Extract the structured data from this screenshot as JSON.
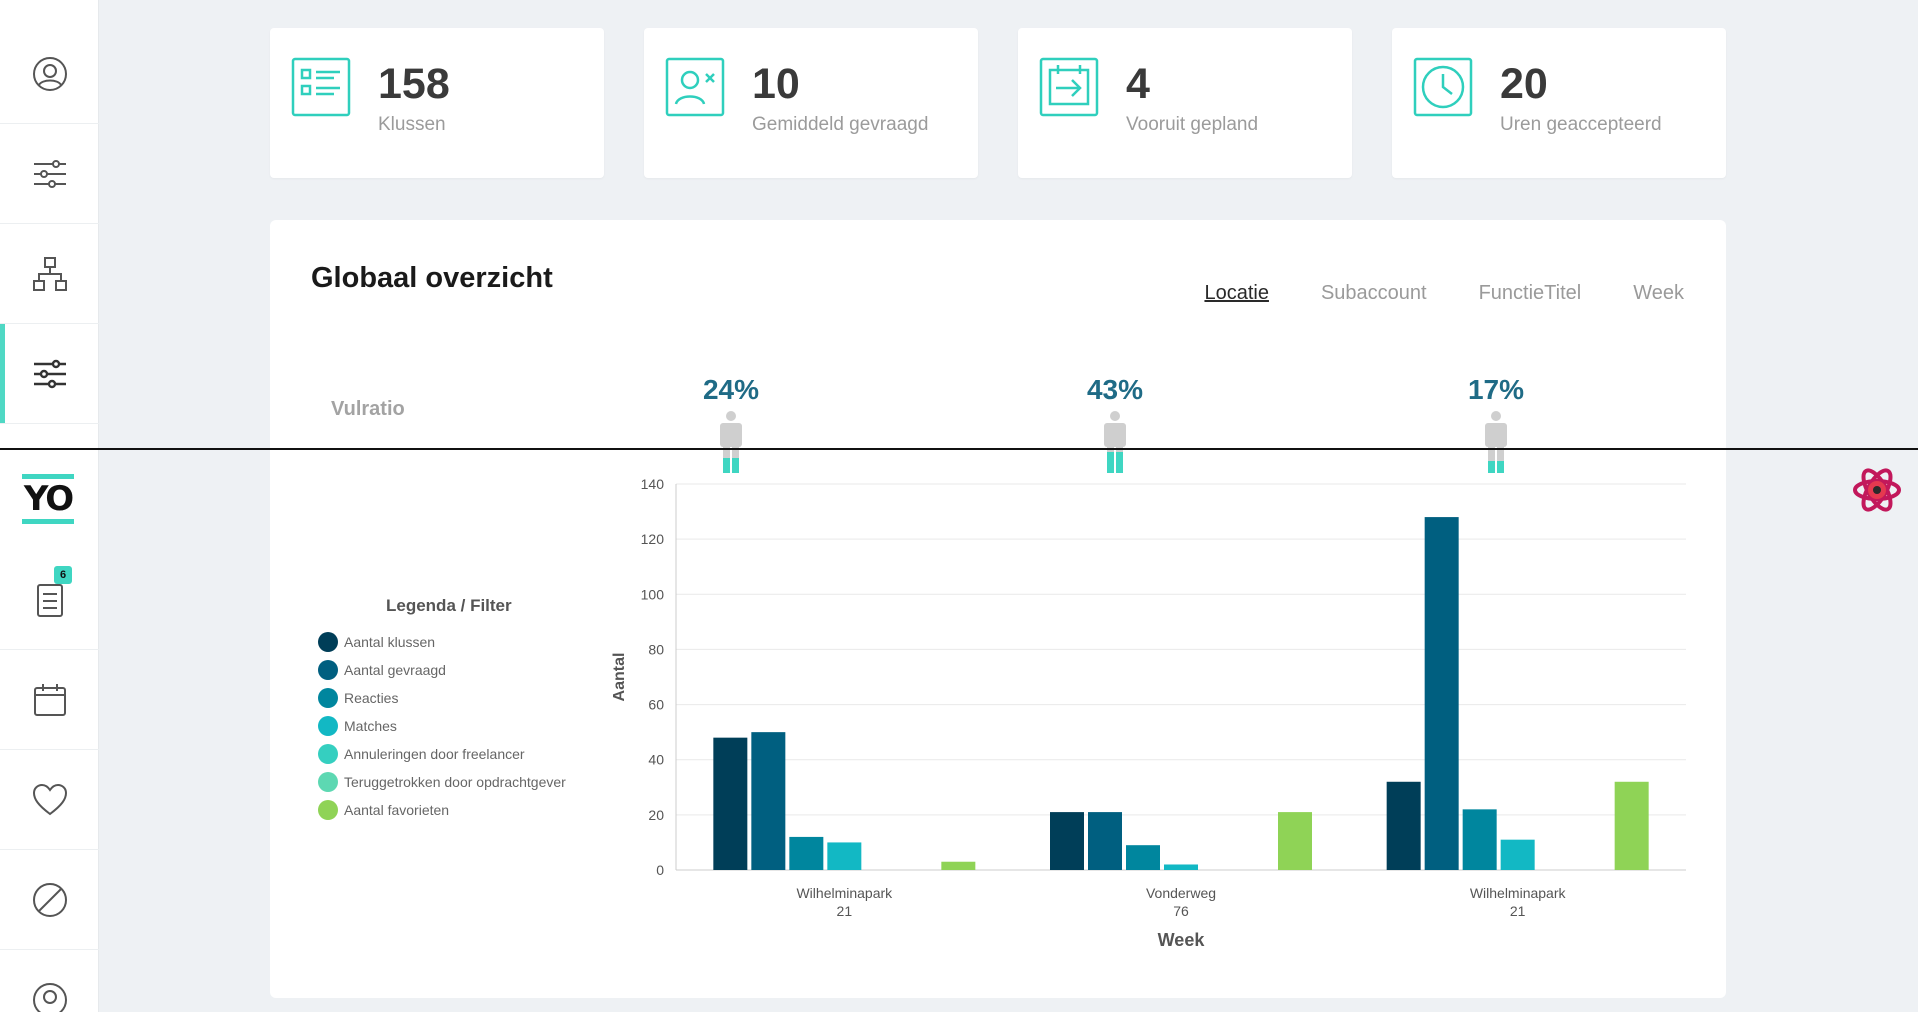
{
  "logo": "YO",
  "sidebar": {
    "badge": "6"
  },
  "stats": [
    {
      "value": "158",
      "label": "Klussen",
      "icon": "checklist-icon"
    },
    {
      "value": "10",
      "label": "Gemiddeld gevraagd",
      "icon": "person-x-icon"
    },
    {
      "value": "4",
      "label": "Vooruit gepland",
      "icon": "calendar-forward-icon"
    },
    {
      "value": "20",
      "label": "Uren geaccepteerd",
      "icon": "clock-icon"
    }
  ],
  "panel": {
    "title": "Globaal overzicht",
    "tabs": [
      "Locatie",
      "Subaccount",
      "FunctieTitel",
      "Week"
    ],
    "vulratio_label": "Vulratio",
    "vulratio": [
      "24%",
      "43%",
      "17%"
    ]
  },
  "legend": {
    "title": "Legenda / Filter",
    "items": [
      "Aantal klussen",
      "Aantal gevraagd",
      "Reacties",
      "Matches",
      "Annuleringen door freelancer",
      "Teruggetrokken door opdrachtgever",
      "Aantal favorieten"
    ]
  },
  "colors": {
    "series": [
      "#003e58",
      "#005f80",
      "#00869e",
      "#12b8c4",
      "#35cfc0",
      "#5dd8b2",
      "#8fd356"
    ],
    "accent": "#3fd6c2",
    "percent": "#1f6b86"
  },
  "chart_data": {
    "type": "bar",
    "categories": [
      [
        "Wilhelminapark",
        "21"
      ],
      [
        "Vonderweg",
        "76"
      ],
      [
        "Wilhelminapark",
        "21"
      ]
    ],
    "series": [
      {
        "name": "Aantal klussen",
        "values": [
          48,
          21,
          32
        ]
      },
      {
        "name": "Aantal gevraagd",
        "values": [
          50,
          21,
          128
        ]
      },
      {
        "name": "Reacties",
        "values": [
          12,
          9,
          22
        ]
      },
      {
        "name": "Matches",
        "values": [
          10,
          2,
          11
        ]
      },
      {
        "name": "Annuleringen door freelancer",
        "values": [
          0,
          0,
          0
        ]
      },
      {
        "name": "Teruggetrokken door opdrachtgever",
        "values": [
          0,
          0,
          0
        ]
      },
      {
        "name": "Aantal favorieten",
        "values": [
          3,
          21,
          32
        ]
      }
    ],
    "xlabel": "Week",
    "ylabel": "Aantal",
    "ylim": [
      0,
      140
    ],
    "yticks": [
      0,
      20,
      40,
      60,
      80,
      100,
      120,
      140
    ],
    "grid": true
  }
}
